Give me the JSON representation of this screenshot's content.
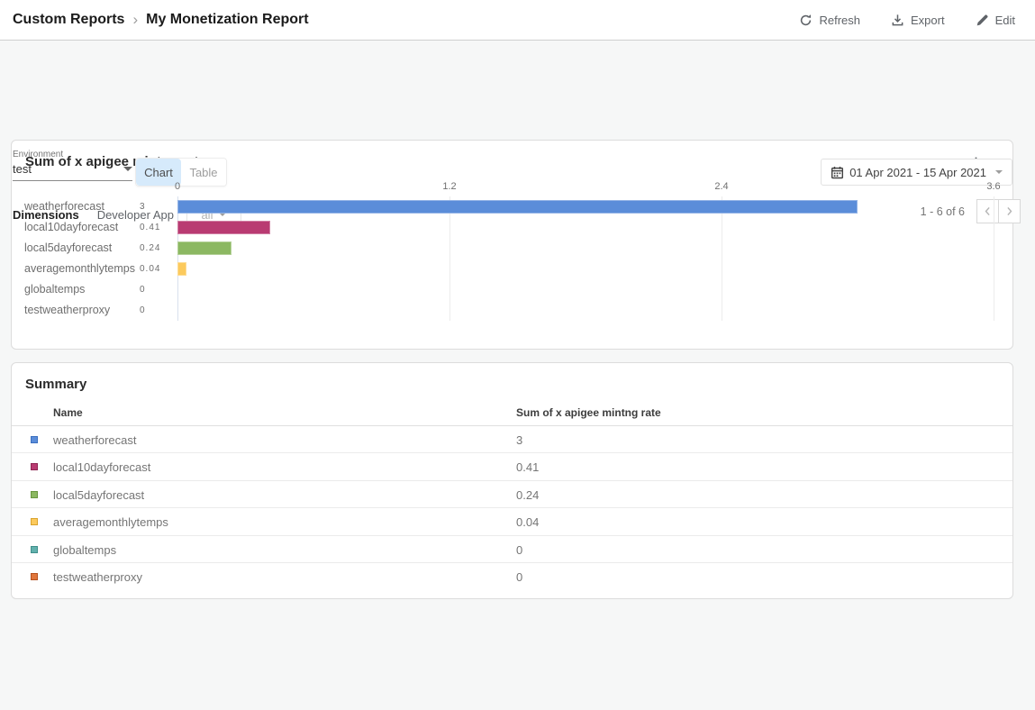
{
  "header": {
    "breadcrumb": {
      "root": "Custom Reports",
      "current": "My Monetization Report"
    },
    "refresh_label": "Refresh",
    "export_label": "Export",
    "edit_label": "Edit"
  },
  "icons": {
    "breadcrumb_separator": "›"
  },
  "filters": {
    "environment_label": "Environment",
    "environment_value": "test",
    "view_chart_label": "Chart",
    "view_table_label": "Table",
    "view_selected": "Chart",
    "date_range": "01 Apr 2021 - 15 Apr 2021"
  },
  "dimensions": {
    "label": "Dimensions",
    "name": "Developer App",
    "selected_value": "all",
    "pagination_text": "1 - 6 of 6"
  },
  "chart_panel": {
    "title": "Sum of x apigee mintng rate"
  },
  "chart_data": {
    "type": "bar",
    "orientation": "horizontal",
    "title": "Sum of x apigee mintng rate",
    "categories": [
      "weatherforecast",
      "local10dayforecast",
      "local5dayforecast",
      "averagemonthlytemps",
      "globaltemps",
      "testweatherproxy"
    ],
    "values": [
      3,
      0.41,
      0.24,
      0.04,
      0,
      0
    ],
    "bar_colors": [
      "#5b8dd9",
      "#b93b72",
      "#8cb862",
      "#fcca5d",
      "#62b1ad",
      "#e0763c"
    ],
    "x_ticks": [
      0,
      1.2,
      2.4,
      3.6
    ],
    "xlim": [
      0,
      3.6
    ],
    "grid": true,
    "legend_position": "none",
    "value_labels_shown": true
  },
  "summary": {
    "title": "Summary",
    "columns": [
      "Name",
      "Sum of x apigee mintng rate"
    ],
    "rows": [
      {
        "name": "weatherforecast",
        "value": "3",
        "marker_color": "#5b8dd9",
        "marker_border": "#3a6fc0"
      },
      {
        "name": "local10dayforecast",
        "value": "0.41",
        "marker_color": "#b93b72",
        "marker_border": "#8e2453"
      },
      {
        "name": "local5dayforecast",
        "value": "0.24",
        "marker_color": "#8cb862",
        "marker_border": "#69953f"
      },
      {
        "name": "averagemonthlytemps",
        "value": "0.04",
        "marker_color": "#fcca5d",
        "marker_border": "#d9a32e"
      },
      {
        "name": "globaltemps",
        "value": "0",
        "marker_color": "#62b1ad",
        "marker_border": "#3f8f8b"
      },
      {
        "name": "testweatherproxy",
        "value": "0",
        "marker_color": "#e0763c",
        "marker_border": "#b55120"
      }
    ]
  }
}
